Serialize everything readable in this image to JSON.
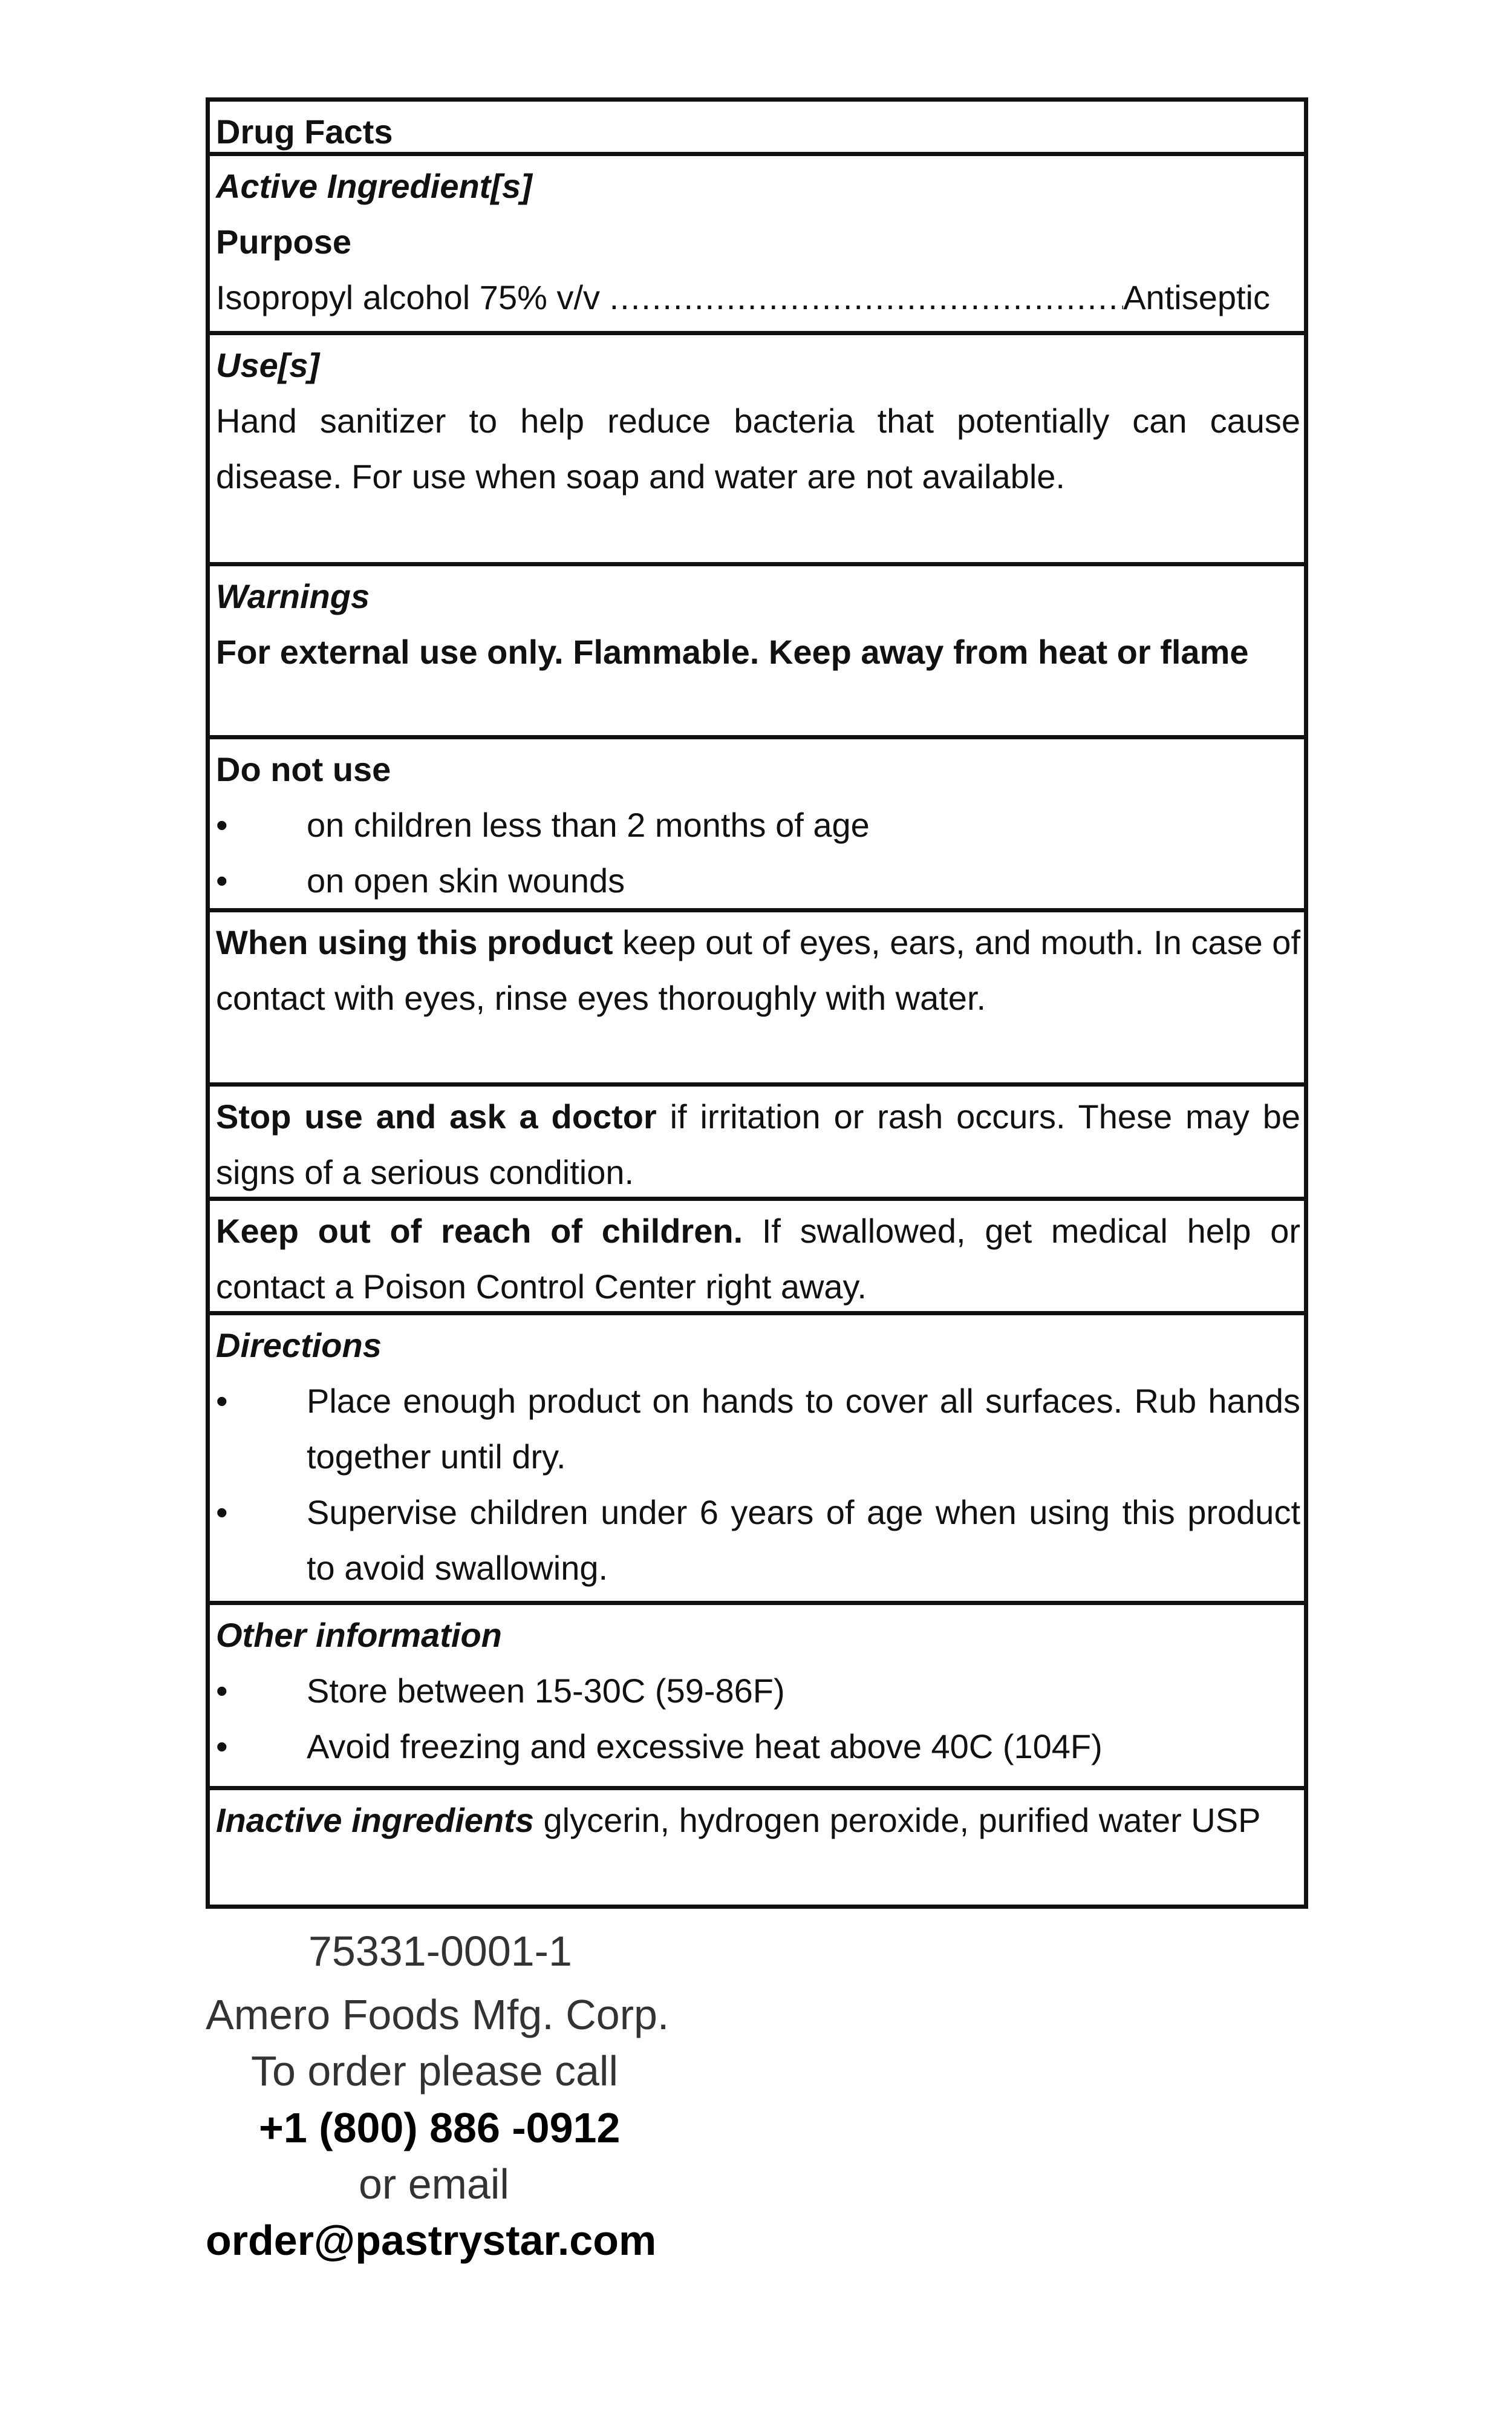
{
  "title": "Drug Facts",
  "active": {
    "heading": "Active Ingredient[s]",
    "purpose_heading": "Purpose",
    "ingredient": "Isopropyl alcohol 75% v/v",
    "dots": "......................................................................",
    "purpose": "Antiseptic"
  },
  "uses": {
    "heading": "Use[s]",
    "text": "Hand sanitizer to help reduce bacteria that potentially can cause disease. For use when soap and water are not available."
  },
  "warnings": {
    "heading": "Warnings",
    "text": "For external use only. Flammable. Keep away from heat or flame"
  },
  "do_not_use": {
    "heading": "Do not use",
    "bullet": "•",
    "items": [
      "on children less than 2 months of age",
      "on open skin wounds"
    ]
  },
  "when_using": {
    "lead": "When using this product",
    "text": " keep out of eyes, ears, and mouth. In case of contact with eyes, rinse eyes thoroughly with water."
  },
  "stop_use": {
    "lead": "Stop use and ask a doctor",
    "text": " if irritation or rash occurs. These may be signs of a serious condition."
  },
  "keep_out": {
    "lead": "Keep out of reach of children.",
    "text": " If swallowed, get medical help or contact a Poison Control Center right away."
  },
  "directions": {
    "heading": "Directions",
    "items": [
      "Place enough product on hands to cover all surfaces. Rub hands together until dry.",
      "Supervise children under 6 years of age when using this product to avoid swallowing."
    ]
  },
  "other_info": {
    "heading": "Other information",
    "items": [
      "Store between 15-30C (59-86F)",
      "Avoid freezing and excessive heat above 40C (104F)"
    ]
  },
  "inactive": {
    "lead": "Inactive ingredients",
    "text": " glycerin, hydrogen peroxide, purified water USP"
  },
  "footer": {
    "code": "75331-0001-1",
    "company": "Amero Foods Mfg. Corp.",
    "order_call": "To order please call",
    "phone": "+1 (800) 886 -0912",
    "or_email": "or email",
    "email": "order@pastrystar.com"
  }
}
